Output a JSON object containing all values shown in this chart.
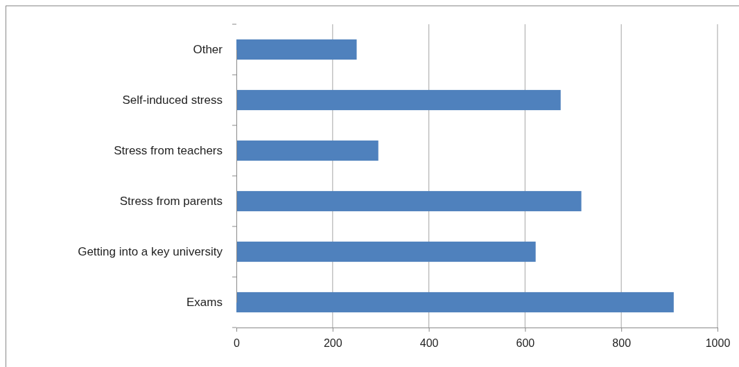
{
  "chart_data": {
    "type": "bar",
    "orientation": "horizontal",
    "categories": [
      "Other",
      "Self-induced stress",
      "Stress from teachers",
      "Stress from parents",
      "Getting into a key university",
      "Exams"
    ],
    "values": [
      250,
      674,
      295,
      717,
      622,
      909
    ],
    "color": "#4f81bd",
    "xlim": [
      0,
      1000
    ],
    "xticks": [
      0,
      200,
      400,
      600,
      800,
      1000
    ],
    "grid": "x"
  }
}
